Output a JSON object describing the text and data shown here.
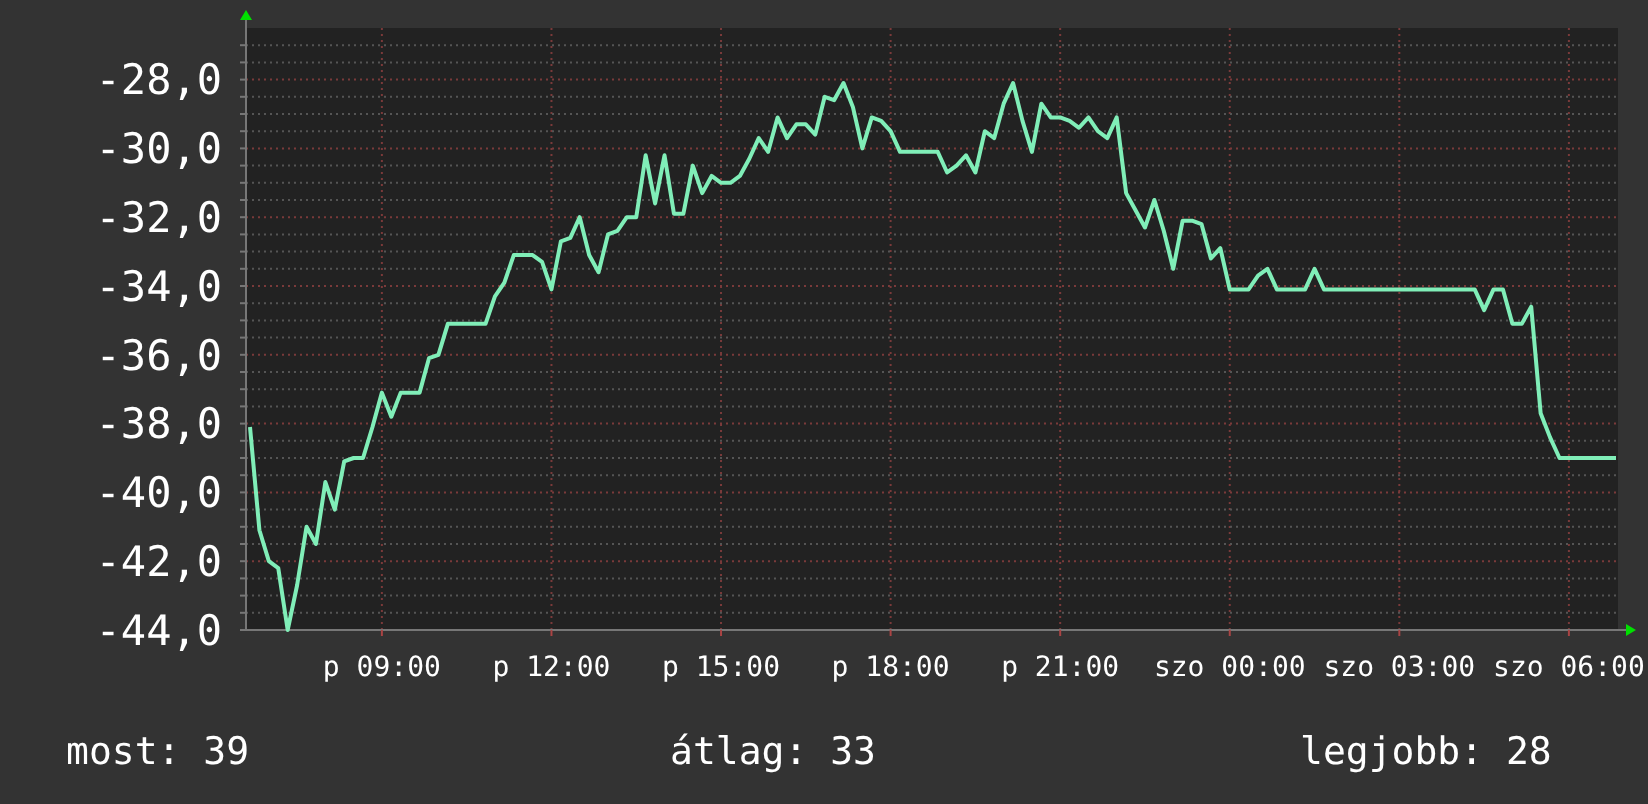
{
  "chart_data": {
    "type": "line",
    "grid": true,
    "marker": "none",
    "line_style": "solid",
    "categories": [
      null,
      null,
      null,
      null,
      null,
      null,
      null,
      null,
      null,
      null,
      null,
      null,
      null,
      null,
      "p 09:00",
      null,
      null,
      null,
      null,
      null,
      null,
      null,
      null,
      null,
      null,
      null,
      null,
      null,
      null,
      null,
      null,
      null,
      "p 12:00",
      null,
      null,
      null,
      null,
      null,
      null,
      null,
      null,
      null,
      null,
      null,
      null,
      null,
      null,
      null,
      null,
      null,
      "p 15:00",
      null,
      null,
      null,
      null,
      null,
      null,
      null,
      null,
      null,
      null,
      null,
      null,
      null,
      null,
      null,
      null,
      null,
      "p 18:00",
      null,
      null,
      null,
      null,
      null,
      null,
      null,
      null,
      null,
      null,
      null,
      null,
      null,
      null,
      null,
      null,
      null,
      "p 21:00",
      null,
      null,
      null,
      null,
      null,
      null,
      null,
      null,
      null,
      null,
      null,
      null,
      null,
      null,
      null,
      null,
      null,
      "szo 00:00",
      null,
      null,
      null,
      null,
      null,
      null,
      null,
      null,
      null,
      null,
      null,
      null,
      null,
      null,
      null,
      null,
      null,
      "szo 03:00",
      null,
      null,
      null,
      null,
      null,
      null,
      null,
      null,
      null,
      null,
      null,
      null,
      null,
      null,
      null,
      null,
      null,
      "szo 06:00",
      null,
      null,
      null,
      null,
      null
    ],
    "ylim": [
      -44,
      -26.5
    ],
    "yticks": [
      {
        "value": -44,
        "label": "-44,0"
      },
      {
        "value": -43.5,
        "label": null
      },
      {
        "value": -43,
        "label": null
      },
      {
        "value": -42.5,
        "label": null
      },
      {
        "value": -42,
        "label": "-42,0"
      },
      {
        "value": -41.5,
        "label": null
      },
      {
        "value": -41,
        "label": null
      },
      {
        "value": -40.5,
        "label": null
      },
      {
        "value": -40,
        "label": "-40,0"
      },
      {
        "value": -39.5,
        "label": null
      },
      {
        "value": -39,
        "label": null
      },
      {
        "value": -38.5,
        "label": null
      },
      {
        "value": -38,
        "label": "-38,0"
      },
      {
        "value": -37.5,
        "label": null
      },
      {
        "value": -37,
        "label": null
      },
      {
        "value": -36.5,
        "label": null
      },
      {
        "value": -36,
        "label": "-36,0"
      },
      {
        "value": -35.5,
        "label": null
      },
      {
        "value": -35,
        "label": null
      },
      {
        "value": -34.5,
        "label": null
      },
      {
        "value": -34,
        "label": "-34,0"
      },
      {
        "value": -33.5,
        "label": null
      },
      {
        "value": -33,
        "label": null
      },
      {
        "value": -32.5,
        "label": null
      },
      {
        "value": -32,
        "label": "-32,0"
      },
      {
        "value": -31.5,
        "label": null
      },
      {
        "value": -31,
        "label": null
      },
      {
        "value": -30.5,
        "label": null
      },
      {
        "value": -30,
        "label": "-30,0"
      },
      {
        "value": -29.5,
        "label": null
      },
      {
        "value": -29,
        "label": null
      },
      {
        "value": -28.5,
        "label": null
      },
      {
        "value": -28,
        "label": "-28,0"
      },
      {
        "value": -27.5,
        "label": null
      },
      {
        "value": -27,
        "label": null
      }
    ],
    "annotations": [
      "most: 39",
      "átlag: 33",
      "legjobb: 28"
    ],
    "series": [
      {
        "color": "#80eeb8",
        "values": [
          -38.1,
          -41.1,
          -42.0,
          -42.2,
          -44.0,
          -42.7,
          -41.0,
          -41.5,
          -39.7,
          -40.5,
          -39.1,
          -39.0,
          -39.0,
          -38.1,
          -37.1,
          -37.8,
          -37.1,
          -37.1,
          -37.1,
          -36.1,
          -36.0,
          -35.1,
          -35.1,
          -35.1,
          -35.1,
          -35.1,
          -34.3,
          -33.9,
          -33.1,
          -33.1,
          -33.1,
          -33.3,
          -34.1,
          -32.7,
          -32.6,
          -32.0,
          -33.1,
          -33.6,
          -32.5,
          -32.4,
          -32.0,
          -32.0,
          -30.2,
          -31.6,
          -30.2,
          -31.9,
          -31.9,
          -30.5,
          -31.3,
          -30.8,
          -31.0,
          -31.0,
          -30.8,
          -30.3,
          -29.7,
          -30.1,
          -29.1,
          -29.7,
          -29.3,
          -29.3,
          -29.6,
          -28.5,
          -28.6,
          -28.1,
          -28.8,
          -30.0,
          -29.1,
          -29.2,
          -29.5,
          -30.1,
          -30.1,
          -30.1,
          -30.1,
          -30.1,
          -30.7,
          -30.5,
          -30.2,
          -30.7,
          -29.5,
          -29.7,
          -28.7,
          -28.1,
          -29.2,
          -30.1,
          -28.7,
          -29.1,
          -29.1,
          -29.2,
          -29.4,
          -29.1,
          -29.5,
          -29.7,
          -29.1,
          -31.3,
          -31.8,
          -32.3,
          -31.5,
          -32.4,
          -33.5,
          -32.1,
          -32.1,
          -32.2,
          -33.2,
          -32.9,
          -34.1,
          -34.1,
          -34.1,
          -33.7,
          -33.5,
          -34.1,
          -34.1,
          -34.1,
          -34.1,
          -33.5,
          -34.1,
          -34.1,
          -34.1,
          -34.1,
          -34.1,
          -34.1,
          -34.1,
          -34.1,
          -34.1,
          -34.1,
          -34.1,
          -34.1,
          -34.1,
          -34.1,
          -34.1,
          -34.1,
          -34.1,
          -34.7,
          -34.1,
          -34.1,
          -35.1,
          -35.1,
          -34.6,
          -37.7,
          -38.4,
          -39.0,
          -39.0,
          -39.0,
          -39.0,
          -39.0,
          -39.0,
          -39.0
        ]
      }
    ]
  }
}
